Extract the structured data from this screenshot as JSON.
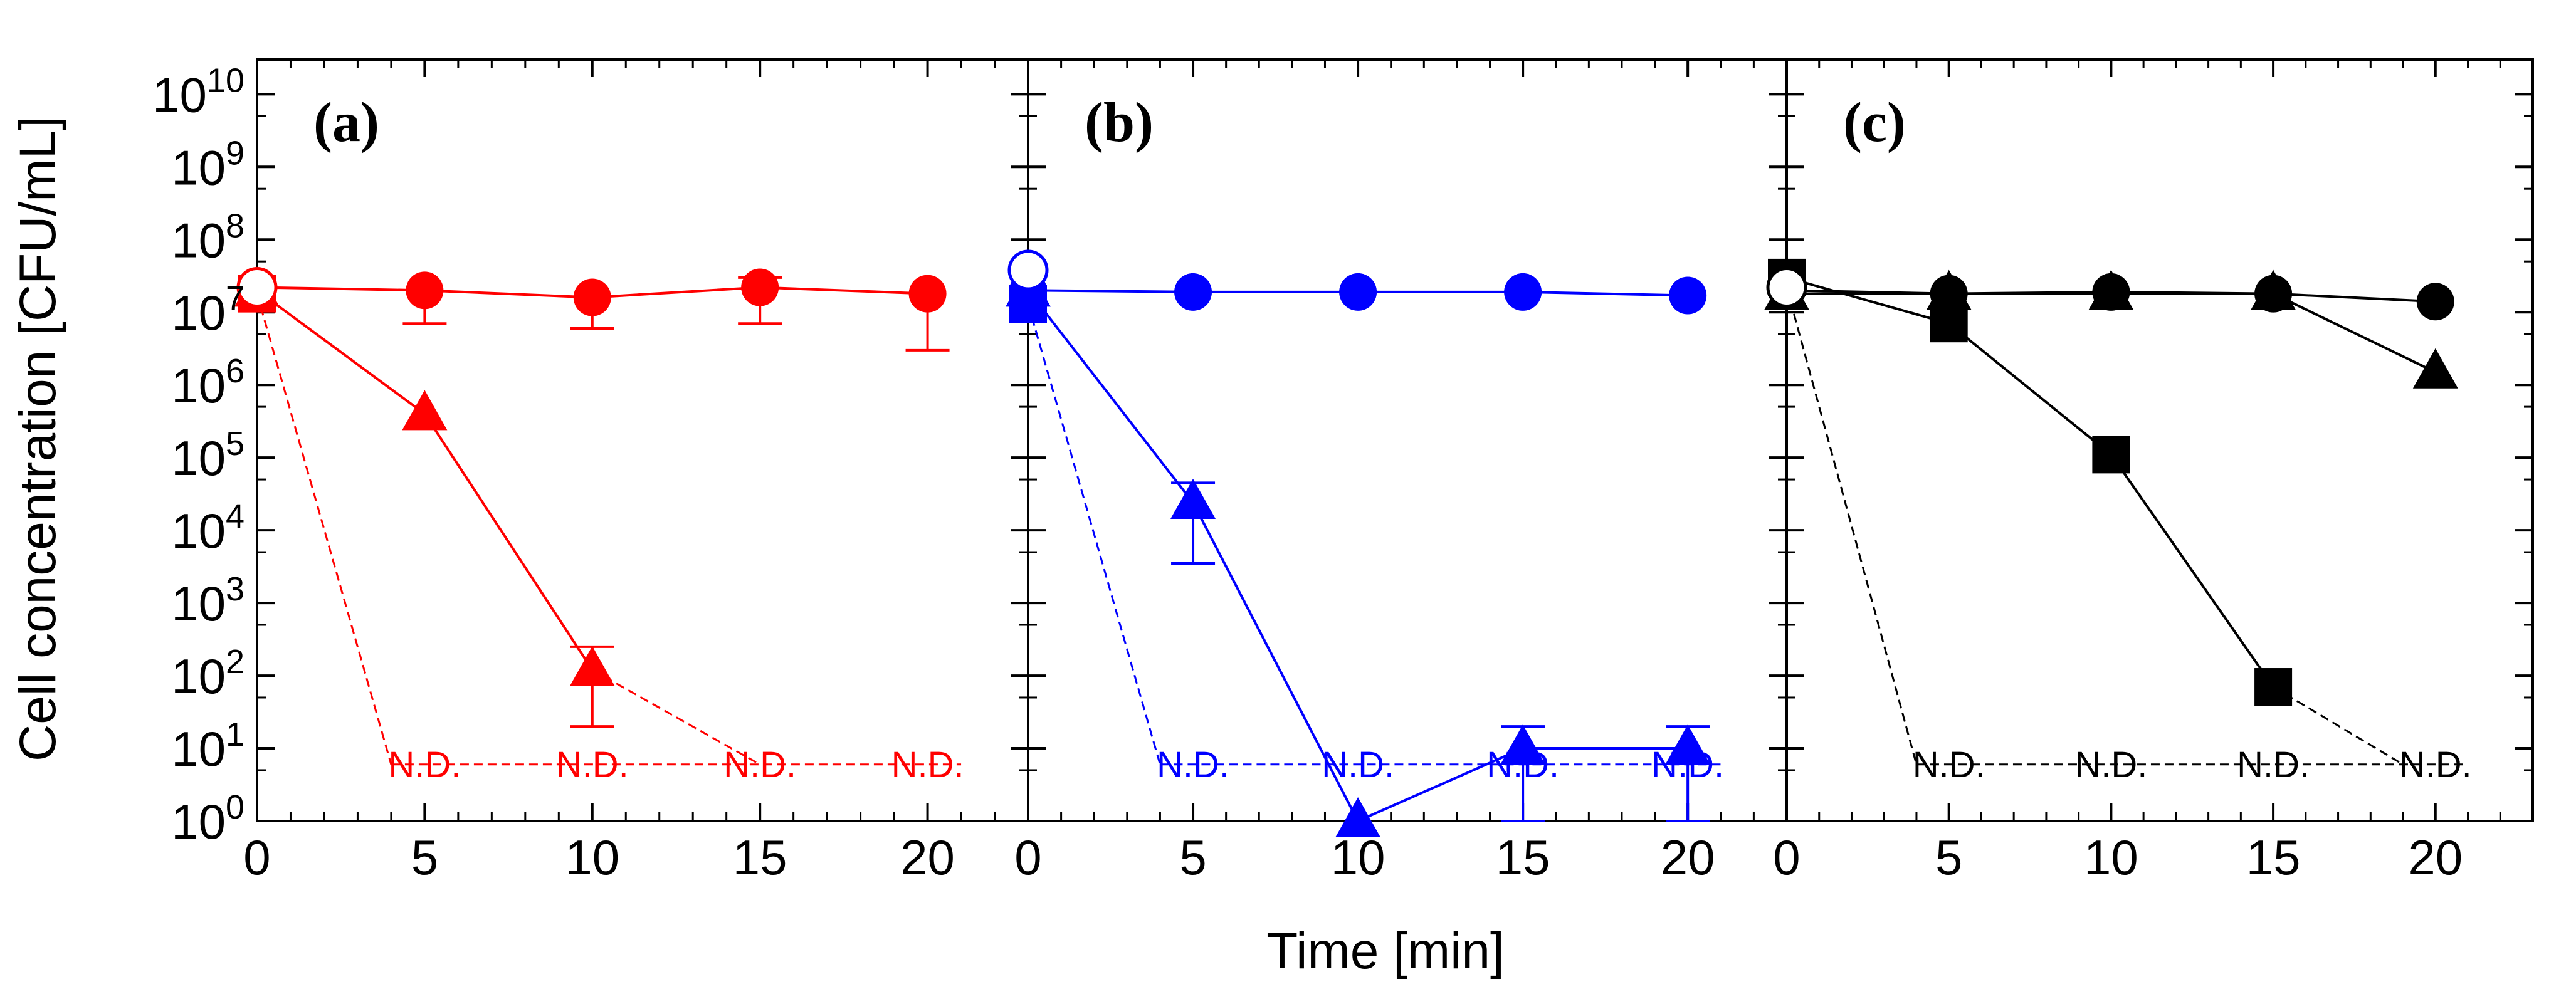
{
  "chart_data": {
    "type": "line",
    "ylabel": "Cell concentration [CFU/mL]",
    "xlabel": "Time [min]",
    "yscale": "log",
    "ylim": [
      1,
      30000000000
    ],
    "y_tick_labels": [
      {
        "base": "10",
        "exp": "0"
      },
      {
        "base": "10",
        "exp": "1"
      },
      {
        "base": "10",
        "exp": "2"
      },
      {
        "base": "10",
        "exp": "3"
      },
      {
        "base": "10",
        "exp": "4"
      },
      {
        "base": "10",
        "exp": "5"
      },
      {
        "base": "10",
        "exp": "6"
      },
      {
        "base": "10",
        "exp": "7"
      },
      {
        "base": "10",
        "exp": "8"
      },
      {
        "base": "10",
        "exp": "9"
      },
      {
        "base": "10",
        "exp": "10"
      }
    ],
    "x_tick_labels": [
      "0",
      "5",
      "10",
      "15",
      "20"
    ],
    "xlim": [
      0,
      23
    ],
    "nd_text": "N.D.",
    "panels": [
      {
        "label": "(a)",
        "color": "#ff0000",
        "series": [
          {
            "name": "circle",
            "marker": "circle",
            "points": [
              [
                0,
                22000000.0
              ],
              [
                5,
                20000000.0
              ],
              [
                10,
                16000000.0
              ],
              [
                15,
                22000000.0
              ],
              [
                20,
                18000000.0
              ]
            ],
            "err_low": [
              null,
              7000000.0,
              6000000.0,
              7000000.0,
              3000000.0
            ],
            "err_high": [
              null,
              null,
              null,
              30000000.0,
              null
            ]
          },
          {
            "name": "triangle",
            "marker": "triangle",
            "points": [
              [
                0,
                20000000.0
              ],
              [
                5,
                400000.0
              ],
              [
                10,
                120.0
              ]
            ],
            "err_low": [
              null,
              null,
              20
            ],
            "err_high": [
              null,
              null,
              250
            ],
            "dashed_to": [
              [
                15,
                6
              ]
            ]
          },
          {
            "name": "square",
            "marker": "square",
            "points": [
              [
                0,
                18000000.0
              ]
            ],
            "dashed_to": [
              [
                4,
                6
              ]
            ]
          },
          {
            "name": "open-circle",
            "marker": "open-circle",
            "points": [
              [
                0,
                22000000.0
              ]
            ]
          }
        ],
        "nd_x": [
          5,
          10,
          15,
          20
        ],
        "nd_line_x": [
          4,
          21
        ]
      },
      {
        "label": "(b)",
        "color": "#0000ff",
        "series": [
          {
            "name": "circle",
            "marker": "circle",
            "points": [
              [
                0,
                20000000.0
              ],
              [
                5,
                19000000.0
              ],
              [
                10,
                19000000.0
              ],
              [
                15,
                19000000.0
              ],
              [
                20,
                17000000.0
              ]
            ]
          },
          {
            "name": "triangle",
            "marker": "triangle",
            "points": [
              [
                0,
                20000000.0
              ],
              [
                5,
                24000.0
              ],
              [
                10,
                1
              ],
              [
                15,
                10
              ],
              [
                20,
                10
              ]
            ],
            "err_low": [
              null,
              3500,
              null,
              1,
              1
            ],
            "err_high": [
              null,
              45000,
              null,
              20,
              20
            ]
          },
          {
            "name": "square",
            "marker": "square",
            "points": [
              [
                0,
                13000000.0
              ]
            ],
            "dashed_to": [
              [
                4,
                6
              ]
            ]
          },
          {
            "name": "open-circle",
            "marker": "open-circle",
            "points": [
              [
                0,
                38000000.0
              ]
            ]
          }
        ],
        "nd_x": [
          5,
          10,
          15,
          20
        ],
        "nd_line_x": [
          4,
          21
        ]
      },
      {
        "label": "(c)",
        "color": "#000000",
        "series": [
          {
            "name": "circle",
            "marker": "circle",
            "points": [
              [
                0,
                20000000.0
              ],
              [
                5,
                18000000.0
              ],
              [
                10,
                19000000.0
              ],
              [
                15,
                18000000.0
              ],
              [
                20,
                14000000.0
              ]
            ]
          },
          {
            "name": "triangle",
            "marker": "triangle",
            "points": [
              [
                0,
                18000000.0
              ],
              [
                5,
                18000000.0
              ],
              [
                10,
                18000000.0
              ],
              [
                15,
                18000000.0
              ],
              [
                20,
                1500000.0
              ]
            ]
          },
          {
            "name": "square",
            "marker": "square",
            "points": [
              [
                0,
                30000000.0
              ],
              [
                5,
                7000000.0
              ],
              [
                10,
                110000.0
              ],
              [
                15,
                70
              ]
            ],
            "dashed_to": [
              [
                19,
                6
              ]
            ]
          },
          {
            "name": "open-circle",
            "marker": "open-circle",
            "points": [
              [
                0,
                22000000.0
              ]
            ],
            "dashed_to": [
              [
                4,
                6
              ]
            ]
          }
        ],
        "nd_x": [
          5,
          10,
          15,
          20
        ],
        "nd_line_x": [
          4,
          21
        ]
      }
    ]
  }
}
